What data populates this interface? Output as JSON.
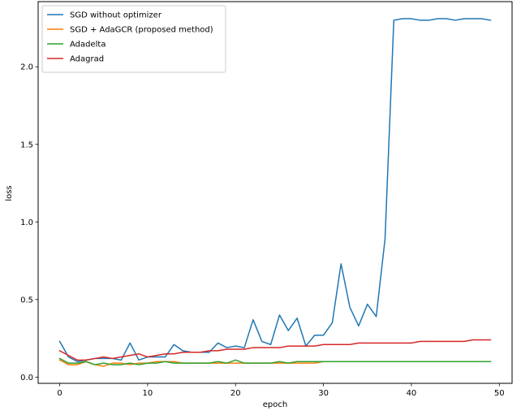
{
  "chart_data": {
    "type": "line",
    "title": "",
    "xlabel": "epoch",
    "ylabel": "loss",
    "xlim": [
      -2.45,
      51.45
    ],
    "ylim": [
      -0.04,
      2.42
    ],
    "x_ticks": [
      0,
      10,
      20,
      30,
      40,
      50
    ],
    "y_ticks": [
      0.0,
      0.5,
      1.0,
      1.5,
      2.0
    ],
    "x_tick_labels": [
      "0",
      "10",
      "20",
      "30",
      "40",
      "50"
    ],
    "y_tick_labels": [
      "0.0",
      "0.5",
      "1.0",
      "1.5",
      "2.0"
    ],
    "grid": false,
    "legend_position": "upper-left",
    "x": [
      0,
      1,
      2,
      3,
      4,
      5,
      6,
      7,
      8,
      9,
      10,
      11,
      12,
      13,
      14,
      15,
      16,
      17,
      18,
      19,
      20,
      21,
      22,
      23,
      24,
      25,
      26,
      27,
      28,
      29,
      30,
      31,
      32,
      33,
      34,
      35,
      36,
      37,
      38,
      39,
      40,
      41,
      42,
      43,
      44,
      45,
      46,
      47,
      48,
      49
    ],
    "series": [
      {
        "name": "SGD without optimizer",
        "color": "#1f77b4",
        "values": [
          0.23,
          0.13,
          0.1,
          0.11,
          0.12,
          0.12,
          0.12,
          0.11,
          0.22,
          0.11,
          0.13,
          0.13,
          0.13,
          0.21,
          0.17,
          0.16,
          0.16,
          0.16,
          0.22,
          0.19,
          0.2,
          0.19,
          0.37,
          0.23,
          0.21,
          0.4,
          0.3,
          0.38,
          0.2,
          0.27,
          0.27,
          0.35,
          0.73,
          0.45,
          0.33,
          0.47,
          0.39,
          0.89,
          2.3,
          2.31,
          2.31,
          2.3,
          2.3,
          2.31,
          2.31,
          2.3,
          2.31,
          2.31,
          2.31,
          2.3
        ]
      },
      {
        "name": "SGD + AdaGCR (proposed method)",
        "color": "#ff7f0e",
        "values": [
          0.11,
          0.08,
          0.08,
          0.1,
          0.08,
          0.07,
          0.09,
          0.09,
          0.08,
          0.09,
          0.09,
          0.1,
          0.1,
          0.1,
          0.09,
          0.09,
          0.09,
          0.09,
          0.09,
          0.09,
          0.09,
          0.09,
          0.09,
          0.09,
          0.09,
          0.09,
          0.09,
          0.09,
          0.09,
          0.09,
          0.1,
          0.1,
          0.1,
          0.1,
          0.1,
          0.1,
          0.1,
          0.1,
          0.1,
          0.1,
          0.1,
          0.1,
          0.1,
          0.1,
          0.1,
          0.1,
          0.1,
          0.1,
          0.1,
          0.1
        ]
      },
      {
        "name": "Adadelta",
        "color": "#2ca02c",
        "values": [
          0.12,
          0.09,
          0.09,
          0.1,
          0.08,
          0.09,
          0.08,
          0.08,
          0.09,
          0.08,
          0.09,
          0.09,
          0.1,
          0.09,
          0.09,
          0.09,
          0.09,
          0.09,
          0.1,
          0.09,
          0.11,
          0.09,
          0.09,
          0.09,
          0.09,
          0.1,
          0.09,
          0.1,
          0.1,
          0.1,
          0.1,
          0.1,
          0.1,
          0.1,
          0.1,
          0.1,
          0.1,
          0.1,
          0.1,
          0.1,
          0.1,
          0.1,
          0.1,
          0.1,
          0.1,
          0.1,
          0.1,
          0.1,
          0.1,
          0.1
        ]
      },
      {
        "name": "Adagrad",
        "color": "#d62728",
        "values": [
          0.17,
          0.14,
          0.11,
          0.11,
          0.12,
          0.13,
          0.12,
          0.13,
          0.14,
          0.15,
          0.13,
          0.14,
          0.15,
          0.15,
          0.16,
          0.16,
          0.16,
          0.17,
          0.17,
          0.18,
          0.18,
          0.18,
          0.19,
          0.19,
          0.19,
          0.19,
          0.2,
          0.2,
          0.2,
          0.2,
          0.21,
          0.21,
          0.21,
          0.21,
          0.22,
          0.22,
          0.22,
          0.22,
          0.22,
          0.22,
          0.22,
          0.23,
          0.23,
          0.23,
          0.23,
          0.23,
          0.23,
          0.24,
          0.24,
          0.24
        ]
      }
    ]
  }
}
